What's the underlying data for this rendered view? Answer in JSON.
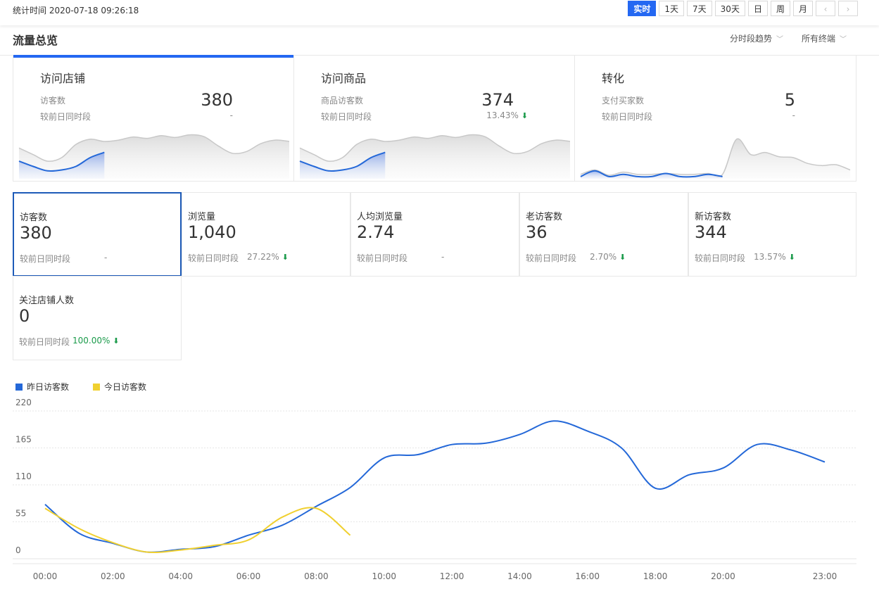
{
  "header": {
    "stat_time": "统计时间 2020-07-18 09:26:18",
    "range_buttons": [
      {
        "label": "实时",
        "active": true
      },
      {
        "label": "1天",
        "active": false
      },
      {
        "label": "7天",
        "active": false
      },
      {
        "label": "30天",
        "active": false
      },
      {
        "label": "日",
        "active": false
      },
      {
        "label": "周",
        "active": false
      },
      {
        "label": "月",
        "active": false
      }
    ],
    "prev_icon": "chevron-left-icon",
    "next_icon": "chevron-right-icon"
  },
  "overview": {
    "title": "流量总览",
    "dropdown_trend": "分时段趋势",
    "dropdown_terminal": "所有终端"
  },
  "cards": [
    {
      "title": "访问店铺",
      "label": "访客数",
      "value": "380",
      "compare_label": "较前日同时段",
      "compare_value": "-",
      "arrow": false
    },
    {
      "title": "访问商品",
      "label": "商品访客数",
      "value": "374",
      "compare_label": "较前日同时段",
      "compare_value": "13.43%",
      "arrow": true
    },
    {
      "title": "转化",
      "label": "支付买家数",
      "value": "5",
      "compare_label": "较前日同时段",
      "compare_value": "-",
      "arrow": false
    }
  ],
  "metrics": [
    {
      "title": "访客数",
      "value": "380",
      "compare_label": "较前日同时段",
      "compare_value": "-",
      "arrow": false
    },
    {
      "title": "浏览量",
      "value": "1,040",
      "compare_label": "较前日同时段",
      "compare_value": "27.22%",
      "arrow": true
    },
    {
      "title": "人均浏览量",
      "value": "2.74",
      "compare_label": "较前日同时段",
      "compare_value": "-",
      "arrow": false
    },
    {
      "title": "老访客数",
      "value": "36",
      "compare_label": "较前日同时段",
      "compare_value": "2.70%",
      "arrow": true
    },
    {
      "title": "新访客数",
      "value": "344",
      "compare_label": "较前日同时段",
      "compare_value": "13.57%",
      "arrow": true
    },
    {
      "title": "关注店铺人数",
      "value": "0",
      "compare_label": "较前日同时段",
      "compare_value": "100.00%",
      "arrow": true,
      "green": true
    }
  ],
  "colors": {
    "accent": "#2468f2",
    "yesterday": "#2468d8",
    "today": "#f0d030",
    "down": "#1a9a4a"
  },
  "chart_data": {
    "type": "line",
    "x_ticks": [
      "00:00",
      "02:00",
      "04:00",
      "06:00",
      "08:00",
      "10:00",
      "12:00",
      "14:00",
      "16:00",
      "18:00",
      "20:00",
      "23:00"
    ],
    "y_ticks": [
      0,
      55,
      110,
      165,
      220
    ],
    "ylim": [
      0,
      220
    ],
    "hours": [
      0,
      1,
      2,
      3,
      4,
      5,
      6,
      7,
      8,
      9,
      10,
      11,
      12,
      13,
      14,
      15,
      16,
      17,
      18,
      19,
      20,
      21,
      22,
      23
    ],
    "series": [
      {
        "name": "昨日访客数",
        "color": "#2468d8",
        "values": [
          81,
          38,
          23,
          10,
          14,
          18,
          35,
          50,
          78,
          106,
          150,
          155,
          170,
          172,
          185,
          205,
          190,
          165,
          105,
          125,
          135,
          170,
          162,
          144
        ]
      },
      {
        "name": "今日访客数",
        "color": "#f0d030",
        "values": [
          75,
          45,
          24,
          10,
          13,
          20,
          28,
          62,
          75,
          35
        ]
      }
    ],
    "legend": "top-left",
    "grid": true
  },
  "sparklines": {
    "shop": {
      "yesterday": [
        70,
        55,
        40,
        48,
        78,
        90,
        85,
        88,
        95,
        92,
        98,
        94,
        100,
        96,
        75,
        58,
        62,
        80,
        88,
        85
      ],
      "today": [
        40,
        28,
        18,
        20,
        28,
        48,
        60
      ]
    },
    "goods": {
      "yesterday": [
        70,
        55,
        40,
        48,
        78,
        90,
        85,
        88,
        95,
        92,
        98,
        94,
        100,
        96,
        75,
        58,
        62,
        80,
        88,
        85
      ],
      "today": [
        40,
        28,
        18,
        20,
        28,
        48,
        60
      ]
    },
    "conversion": {
      "yesterday": [
        10,
        20,
        8,
        15,
        10,
        10,
        12,
        10,
        10,
        12,
        10,
        90,
        55,
        60,
        50,
        48,
        35,
        30,
        32,
        20
      ],
      "today": [
        5,
        18,
        5,
        10,
        5,
        5,
        12,
        5,
        5,
        10,
        5
      ]
    }
  }
}
